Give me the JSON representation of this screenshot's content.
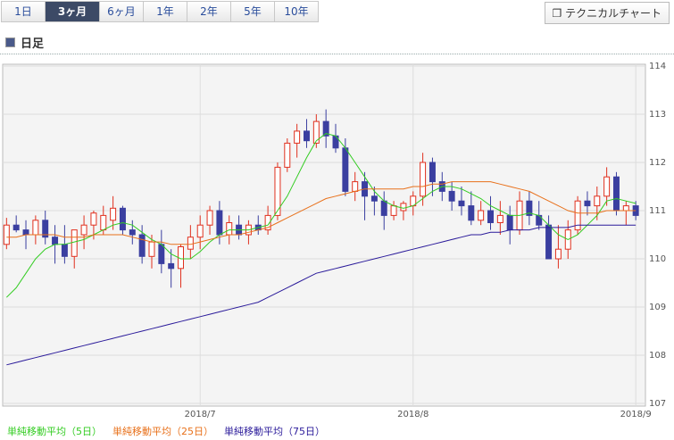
{
  "tabs": [
    "1日",
    "3ヶ月",
    "6ヶ月",
    "1年",
    "2年",
    "5年",
    "10年"
  ],
  "technical_button": "テクニカルチャート",
  "section_title": "日足",
  "chart_data": {
    "type": "candlestick",
    "up_color": "#e0301e",
    "down_color": "#3a3fa0",
    "open": [
      110.3,
      110.7,
      110.6,
      110.5,
      110.8,
      110.45,
      110.3,
      110.05,
      110.5,
      110.7,
      110.6,
      110.8,
      111.05,
      110.6,
      110.5,
      110.05,
      110.3,
      109.9,
      109.8,
      110.2,
      110.45,
      110.7,
      111.0,
      110.5,
      110.7,
      110.5,
      110.7,
      110.6,
      110.9,
      111.9,
      112.4,
      112.65,
      112.4,
      112.85,
      112.55,
      112.3,
      111.4,
      111.6,
      111.3,
      111.2,
      110.9,
      111.0,
      111.1,
      111.3,
      112.0,
      111.6,
      111.4,
      111.2,
      111.1,
      110.8,
      111.0,
      110.75,
      110.9,
      110.6,
      111.2,
      110.9,
      110.7,
      110.0,
      110.2,
      110.6,
      111.2,
      111.1,
      111.3,
      111.7,
      111.0,
      111.1
    ],
    "high": [
      110.85,
      110.9,
      110.8,
      110.9,
      111.0,
      110.7,
      110.7,
      110.6,
      110.9,
      111.0,
      111.1,
      111.3,
      111.1,
      110.8,
      110.7,
      110.5,
      110.6,
      110.2,
      110.3,
      110.7,
      110.9,
      111.1,
      111.2,
      110.9,
      110.9,
      110.8,
      110.9,
      111.1,
      112.0,
      112.5,
      112.8,
      112.9,
      113.0,
      113.1,
      112.8,
      112.5,
      111.8,
      111.8,
      111.5,
      111.4,
      111.2,
      111.2,
      111.4,
      112.2,
      112.1,
      111.8,
      111.6,
      111.5,
      111.4,
      111.2,
      111.3,
      111.2,
      111.1,
      111.4,
      111.4,
      111.2,
      110.9,
      110.7,
      110.8,
      111.3,
      111.4,
      111.5,
      111.9,
      111.8,
      111.2,
      111.2
    ],
    "low": [
      110.2,
      110.55,
      110.2,
      110.3,
      110.3,
      109.9,
      109.9,
      109.8,
      110.2,
      110.4,
      110.5,
      110.6,
      110.5,
      110.3,
      109.9,
      109.8,
      109.7,
      109.4,
      109.4,
      110.0,
      110.2,
      110.5,
      110.3,
      110.3,
      110.4,
      110.3,
      110.5,
      110.5,
      110.8,
      111.8,
      112.1,
      112.3,
      112.3,
      112.3,
      112.2,
      111.3,
      111.2,
      110.8,
      110.9,
      110.6,
      110.8,
      110.8,
      110.9,
      111.1,
      111.3,
      111.2,
      111.0,
      110.9,
      110.7,
      110.7,
      110.6,
      110.5,
      110.3,
      110.5,
      110.7,
      110.6,
      110.0,
      109.8,
      110.0,
      110.5,
      110.9,
      110.8,
      111.1,
      110.9,
      110.7,
      110.8
    ],
    "close": [
      110.7,
      110.6,
      110.5,
      110.8,
      110.45,
      110.3,
      110.05,
      110.6,
      110.7,
      110.95,
      110.9,
      111.05,
      110.6,
      110.5,
      110.05,
      110.35,
      109.9,
      109.8,
      110.25,
      110.45,
      110.7,
      111.0,
      110.5,
      110.75,
      110.5,
      110.7,
      110.6,
      110.9,
      111.9,
      112.4,
      112.65,
      112.45,
      112.85,
      112.55,
      112.3,
      111.4,
      111.6,
      111.3,
      111.2,
      110.9,
      111.1,
      111.15,
      111.3,
      112.0,
      111.6,
      111.4,
      111.2,
      111.1,
      110.8,
      111.0,
      110.75,
      110.9,
      110.6,
      111.2,
      110.9,
      110.7,
      110.0,
      110.2,
      110.6,
      111.2,
      111.1,
      111.3,
      111.7,
      111.0,
      111.1,
      110.9
    ],
    "series": [
      {
        "name": "単純移動平均（5日）",
        "color": "#33cc22",
        "values": [
          109.2,
          109.4,
          109.7,
          110.0,
          110.2,
          110.3,
          110.3,
          110.35,
          110.4,
          110.5,
          110.6,
          110.7,
          110.75,
          110.7,
          110.55,
          110.4,
          110.3,
          110.1,
          110.0,
          110.0,
          110.15,
          110.35,
          110.5,
          110.6,
          110.6,
          110.6,
          110.65,
          110.7,
          111.0,
          111.3,
          111.7,
          112.1,
          112.45,
          112.6,
          112.55,
          112.3,
          112.0,
          111.7,
          111.4,
          111.2,
          111.1,
          111.05,
          111.1,
          111.25,
          111.4,
          111.5,
          111.5,
          111.45,
          111.35,
          111.25,
          111.1,
          111.0,
          110.9,
          110.9,
          110.95,
          110.9,
          110.7,
          110.5,
          110.4,
          110.5,
          110.7,
          110.9,
          111.2,
          111.25,
          111.2,
          111.15
        ]
      },
      {
        "name": "単純移動平均（25日）",
        "color": "#e8701a",
        "values": [
          110.45,
          110.45,
          110.5,
          110.5,
          110.5,
          110.5,
          110.45,
          110.45,
          110.45,
          110.5,
          110.5,
          110.5,
          110.5,
          110.45,
          110.4,
          110.35,
          110.35,
          110.3,
          110.3,
          110.3,
          110.35,
          110.4,
          110.45,
          110.5,
          110.5,
          110.55,
          110.6,
          110.65,
          110.75,
          110.85,
          110.95,
          111.05,
          111.15,
          111.25,
          111.3,
          111.35,
          111.4,
          111.45,
          111.45,
          111.45,
          111.45,
          111.45,
          111.5,
          111.5,
          111.55,
          111.55,
          111.6,
          111.6,
          111.6,
          111.6,
          111.6,
          111.55,
          111.5,
          111.45,
          111.4,
          111.3,
          111.2,
          111.1,
          111.0,
          110.95,
          110.95,
          110.95,
          111.0,
          111.0,
          111.0,
          111.0
        ]
      },
      {
        "name": "単純移動平均（75日）",
        "color": "#2a1a9a",
        "values": [
          107.8,
          107.85,
          107.9,
          107.95,
          108.0,
          108.05,
          108.1,
          108.15,
          108.2,
          108.25,
          108.3,
          108.35,
          108.4,
          108.45,
          108.5,
          108.55,
          108.6,
          108.65,
          108.7,
          108.75,
          108.8,
          108.85,
          108.9,
          108.95,
          109.0,
          109.05,
          109.1,
          109.2,
          109.3,
          109.4,
          109.5,
          109.6,
          109.7,
          109.75,
          109.8,
          109.85,
          109.9,
          109.95,
          110.0,
          110.05,
          110.1,
          110.15,
          110.2,
          110.25,
          110.3,
          110.35,
          110.4,
          110.45,
          110.5,
          110.5,
          110.55,
          110.55,
          110.6,
          110.6,
          110.6,
          110.65,
          110.65,
          110.65,
          110.65,
          110.7,
          110.7,
          110.7,
          110.7,
          110.7,
          110.7,
          110.7
        ]
      }
    ],
    "xlim": [
      -0.4,
      66
    ],
    "xticks": [
      {
        "value": 20,
        "label": "2018/7"
      },
      {
        "value": 42,
        "label": "2018/8"
      },
      {
        "value": 65,
        "label": "2018/9"
      }
    ],
    "ylim": [
      107,
      114
    ],
    "yticks": [
      107,
      108,
      109,
      110,
      111,
      112,
      113,
      114
    ],
    "grid": true
  }
}
